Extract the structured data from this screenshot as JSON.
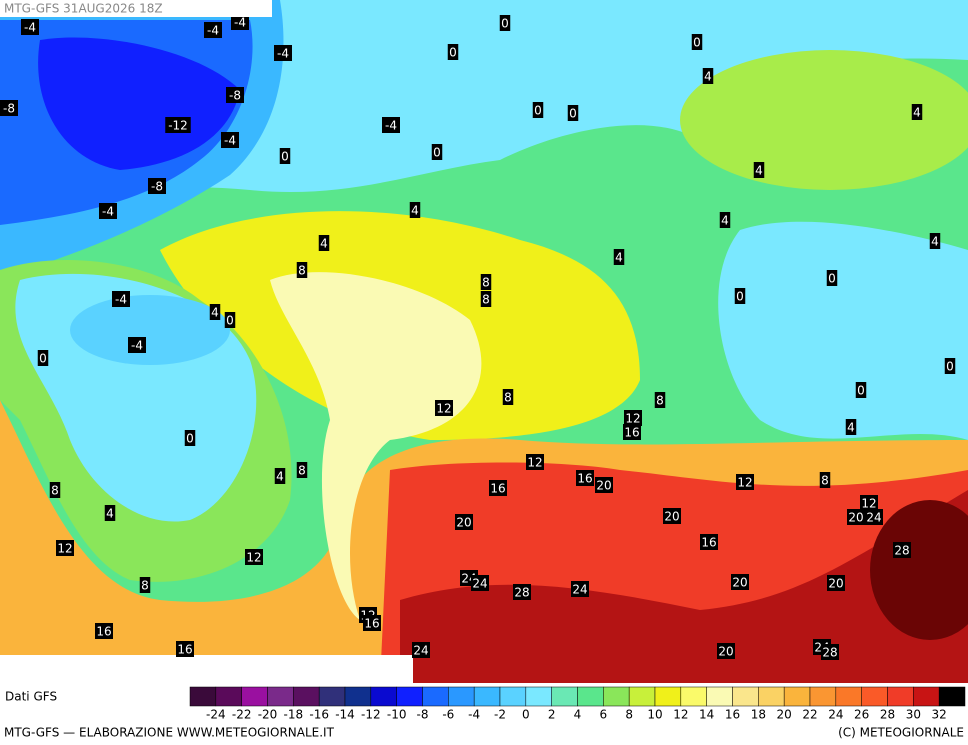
{
  "header": {
    "title": "MTG-GFS 31AUG2026 18Z"
  },
  "map": {
    "labels": [
      -4,
      -4,
      -4,
      0,
      0,
      -4,
      0,
      4,
      -8,
      -8,
      -12,
      -4,
      0,
      0,
      4,
      -4,
      0,
      0,
      -8,
      4,
      -4,
      4,
      4,
      4,
      4,
      4,
      8,
      8,
      0,
      8,
      -4,
      0,
      4,
      0,
      -4,
      0,
      0,
      0,
      8,
      8,
      12,
      12,
      16,
      4,
      0,
      12,
      4,
      8,
      16,
      8,
      12,
      8,
      16,
      20,
      4,
      12,
      20,
      20,
      20,
      24,
      12,
      16,
      28,
      12,
      8,
      24,
      24,
      28,
      24,
      20,
      20,
      12,
      16,
      16,
      16,
      24,
      20,
      24,
      28
    ]
  },
  "colorbar": {
    "label": "Dati GFS",
    "colors": [
      "#3a0a3a",
      "#5a0a5a",
      "#9a10a0",
      "#7a2a8a",
      "#5a1060",
      "#30307a",
      "#10308e",
      "#0a0ad0",
      "#1020ff",
      "#1a6aff",
      "#2a98ff",
      "#3ab8ff",
      "#5ad2ff",
      "#7ae8ff",
      "#6ae8b4",
      "#5ae68c",
      "#8ae65a",
      "#c8f03a",
      "#f0f01a",
      "#fafa6a",
      "#fafab4",
      "#fae68c",
      "#fad264",
      "#fab43c",
      "#fa9632",
      "#fa7828",
      "#fa5a28",
      "#f03c28",
      "#c81414",
      "#000000"
    ],
    "ticks": [
      -24,
      -22,
      -20,
      -18,
      -16,
      -14,
      -12,
      -10,
      -8,
      -6,
      -4,
      -2,
      0,
      2,
      4,
      6,
      8,
      10,
      12,
      14,
      16,
      18,
      20,
      22,
      24,
      26,
      28,
      30,
      32
    ]
  },
  "footer": {
    "left": "MTG-GFS — ELABORAZIONE WWW.METEOGIORNALE.IT",
    "right": "(C) METEOGIORNALE"
  }
}
